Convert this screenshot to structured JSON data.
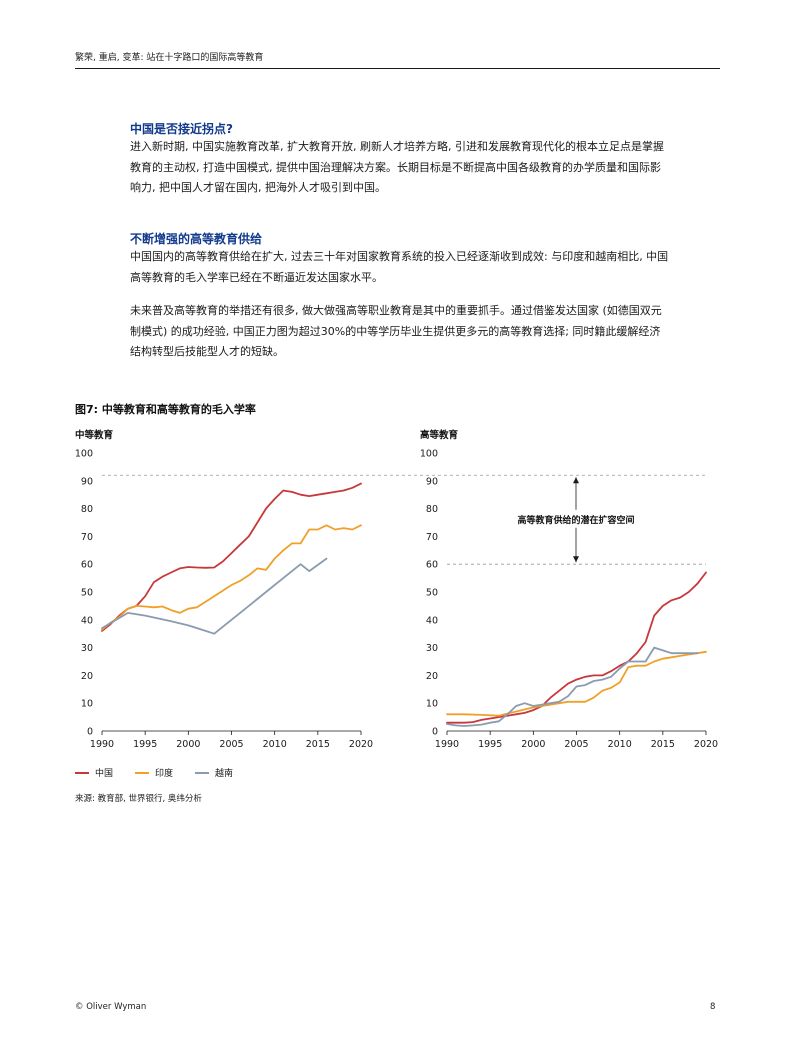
{
  "running_head": "繁荣, 重启, 变革: 站在十字路口的国际高等教育",
  "section1": {
    "heading": "中国是否接近拐点?",
    "body": "进入新时期, 中国实施教育改革, 扩大教育开放, 刷新人才培养方略, 引进和发展教育现代化的根本立足点是掌握教育的主动权, 打造中国模式, 提供中国治理解决方案。长期目标是不断提高中国各级教育的办学质量和国际影响力, 把中国人才留在国内, 把海外人才吸引到中国。"
  },
  "section2": {
    "heading": "不断增强的高等教育供给",
    "body1": "中国国内的高等教育供给在扩大, 过去三十年对国家教育系统的投入已经逐渐收到成效: 与印度和越南相比, 中国高等教育的毛入学率已经在不断逼近发达国家水平。",
    "body2": "未来普及高等教育的举措还有很多, 做大做强高等职业教育是其中的重要抓手。通过借鉴发达国家 (如德国双元制模式) 的成功经验, 中国正力图为超过30%的中等学历毕业生提供更多元的高等教育选择; 同时籍此缓解经济结构转型后技能型人才的短缺。"
  },
  "figure": {
    "title": "图7: 中等教育和高等教育的毛入学率",
    "source": "来源: 教育部, 世界银行, 奥纬分析"
  },
  "chart_data": [
    {
      "type": "line",
      "title": "中等教育",
      "ylim": [
        0,
        100
      ],
      "yticks": [
        0,
        10,
        20,
        30,
        40,
        50,
        60,
        70,
        80,
        90,
        100
      ],
      "xlim": [
        1990,
        2020
      ],
      "xticks": [
        1990,
        1995,
        2000,
        2005,
        2010,
        2015,
        2020
      ],
      "reference_lines": [
        92
      ],
      "series": [
        {
          "name": "中国",
          "color": "#c8373a",
          "x": [
            1990,
            1991,
            1992,
            1993,
            1994,
            1995,
            1996,
            1997,
            1998,
            1999,
            2000,
            2001,
            2002,
            2003,
            2004,
            2005,
            2006,
            2007,
            2008,
            2009,
            2010,
            2011,
            2012,
            2013,
            2014,
            2015,
            2016,
            2017,
            2018,
            2019,
            2020
          ],
          "y": [
            36,
            38.5,
            41.5,
            44,
            45,
            48.5,
            53.5,
            55.5,
            57,
            58.5,
            59,
            58.8,
            58.7,
            58.8,
            61,
            64,
            67,
            70,
            75,
            80,
            83.5,
            86.5,
            86,
            85,
            84.5,
            85,
            85.5,
            86,
            86.5,
            87.5,
            89
          ]
        },
        {
          "name": "印度",
          "color": "#f0a028",
          "x": [
            1990,
            1991,
            1992,
            1993,
            1994,
            1995,
            1996,
            1997,
            1998,
            1999,
            2000,
            2001,
            2002,
            2003,
            2004,
            2005,
            2006,
            2007,
            2008,
            2009,
            2010,
            2011,
            2012,
            2013,
            2014,
            2015,
            2016,
            2017,
            2018,
            2019,
            2020
          ],
          "y": [
            36.5,
            39,
            41,
            44,
            45,
            44.8,
            44.5,
            44.8,
            43.5,
            42.5,
            44,
            44.5,
            46.5,
            48.5,
            50.5,
            52.5,
            54,
            56,
            58.5,
            58,
            62,
            65,
            67.5,
            67.5,
            72.5,
            72.5,
            74,
            72.5,
            73,
            72.5,
            74
          ]
        },
        {
          "name": "越南",
          "color": "#8a9bb0",
          "x": [
            1990,
            1993,
            1995,
            1998,
            2000,
            2002,
            2003,
            2005,
            2007,
            2009,
            2011,
            2013,
            2014,
            2016
          ],
          "y": [
            37,
            42.5,
            41.5,
            39.5,
            38,
            36,
            35,
            40,
            45,
            50,
            55,
            60,
            57.5,
            62
          ]
        }
      ]
    },
    {
      "type": "line",
      "title": "高等教育",
      "ylim": [
        0,
        100
      ],
      "yticks": [
        0,
        10,
        20,
        30,
        40,
        50,
        60,
        70,
        80,
        90,
        100
      ],
      "xlim": [
        1990,
        2020
      ],
      "xticks": [
        1990,
        1995,
        2000,
        2005,
        2010,
        2015,
        2020
      ],
      "reference_lines": [
        92,
        60
      ],
      "annotation": "高等教育供给的潜在扩容空间",
      "series": [
        {
          "name": "中国",
          "color": "#c8373a",
          "x": [
            1990,
            1991,
            1992,
            1993,
            1994,
            1995,
            1996,
            1997,
            1998,
            1999,
            2000,
            2001,
            2002,
            2003,
            2004,
            2005,
            2006,
            2007,
            2008,
            2009,
            2010,
            2011,
            2012,
            2013,
            2014,
            2015,
            2016,
            2017,
            2018,
            2019,
            2020
          ],
          "y": [
            3,
            3,
            3,
            3.2,
            4,
            4.5,
            5,
            5.5,
            6,
            6.5,
            7.5,
            9,
            12,
            14.5,
            17,
            18.5,
            19.5,
            20,
            20,
            21.5,
            23.5,
            25,
            28,
            32,
            41.5,
            45,
            47,
            48,
            50,
            53,
            57
          ]
        },
        {
          "name": "印度",
          "color": "#f0a028",
          "x": [
            1990,
            1992,
            1994,
            1996,
            1998,
            2000,
            2002,
            2004,
            2006,
            2007,
            2008,
            2009,
            2010,
            2011,
            2012,
            2013,
            2014,
            2015,
            2016,
            2017,
            2018,
            2019,
            2020
          ],
          "y": [
            6,
            6,
            5.8,
            5.5,
            7,
            8.5,
            9.5,
            10.5,
            10.5,
            12,
            14.5,
            15.5,
            17.5,
            23,
            23.5,
            23.5,
            25,
            26,
            26.5,
            27,
            27.5,
            28,
            28.5
          ]
        },
        {
          "name": "越南",
          "color": "#8a9bb0",
          "x": [
            1990,
            1991,
            1992,
            1993,
            1994,
            1995,
            1996,
            1997,
            1998,
            1999,
            2000,
            2001,
            2002,
            2003,
            2004,
            2005,
            2006,
            2007,
            2008,
            2009,
            2010,
            2011,
            2012,
            2013,
            2014,
            2015,
            2016,
            2017,
            2018,
            2019
          ],
          "y": [
            2.5,
            2,
            1.8,
            2,
            2.3,
            3,
            3.5,
            6,
            9,
            10,
            9,
            9.5,
            10,
            10.5,
            12.5,
            16,
            16.5,
            18,
            18.5,
            19.5,
            22.5,
            25,
            25,
            25,
            30,
            29,
            28,
            28,
            28,
            28
          ]
        }
      ]
    }
  ],
  "legend": [
    {
      "name": "中国",
      "color": "#c8373a"
    },
    {
      "name": "印度",
      "color": "#f0a028"
    },
    {
      "name": "越南",
      "color": "#8a9bb0"
    }
  ],
  "footer": {
    "copyright": "© Oliver Wyman",
    "page_number": "8"
  }
}
